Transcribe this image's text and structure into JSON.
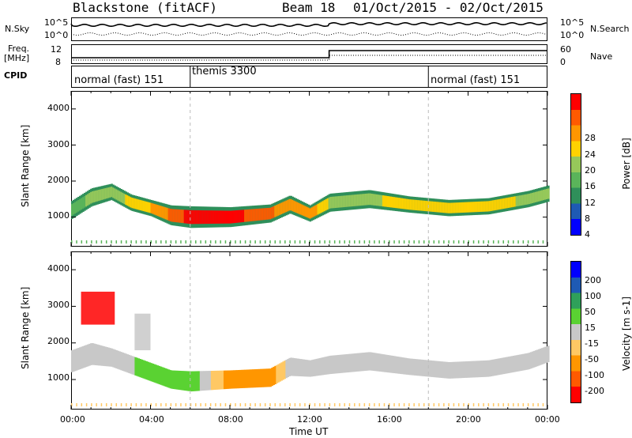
{
  "header": {
    "station": "Blackstone (fitACF)",
    "beam": "Beam 18",
    "dates": "01/Oct/2015 - 02/Oct/2015"
  },
  "top_panels": {
    "nsky_label": "N.Sky",
    "nsearch_label": "N.Search",
    "nsky_ticks": [
      "10^5",
      "10^0"
    ],
    "nsearch_ticks": [
      "10^5",
      "10^0"
    ],
    "freq_label": "Freq.",
    "freq_unit": "[MHz]",
    "freq_ticks": [
      "12",
      "8"
    ],
    "nave_label": "Nave",
    "nave_ticks": [
      "60",
      "0"
    ],
    "cpid_label": "CPID"
  },
  "cpid_segments": [
    {
      "label": "normal (fast) 151",
      "start_hour": 0,
      "end_hour": 6
    },
    {
      "label": "themis 3300",
      "start_hour": 6,
      "end_hour": 18
    },
    {
      "label": "normal (fast) 151",
      "start_hour": 18,
      "end_hour": 24
    }
  ],
  "x_axis": {
    "label": "Time UT",
    "ticks": [
      "00:00",
      "04:00",
      "08:00",
      "12:00",
      "16:00",
      "20:00",
      "00:00"
    ],
    "range_hours": [
      0,
      24
    ]
  },
  "colors": {
    "power": [
      "#0000ff",
      "#1e5ab4",
      "#2f8f5a",
      "#5ab45a",
      "#96c85a",
      "#ffd200",
      "#ff9600",
      "#ff5a00",
      "#ff0000"
    ],
    "velocity": [
      "#ff0000",
      "#ff5a00",
      "#ff9600",
      "#ffc864",
      "#c8c8c8",
      "#5ad232",
      "#2fa05a",
      "#1e5ab4",
      "#0000ff"
    ]
  },
  "chart_data": [
    {
      "type": "heatmap",
      "panel": "power",
      "ylabel": "Slant Range [km]",
      "xlabel": "Time UT",
      "ylim": [
        180,
        4500
      ],
      "yticks": [
        1000,
        2000,
        3000,
        4000
      ],
      "colorbar_label": "Power [dB]",
      "colorbar_ticks": [
        "28",
        "24",
        "20",
        "16",
        "12",
        "8",
        "4"
      ],
      "colorbar_range": [
        0,
        30
      ],
      "scatter_band": [
        {
          "hour": 0.0,
          "center_km": 1200,
          "width_km": 500,
          "power_db": 12
        },
        {
          "hour": 1.0,
          "center_km": 1550,
          "width_km": 500,
          "power_db": 14
        },
        {
          "hour": 2.0,
          "center_km": 1700,
          "width_km": 450,
          "power_db": 14
        },
        {
          "hour": 3.0,
          "center_km": 1400,
          "width_km": 450,
          "power_db": 18
        },
        {
          "hour": 4.0,
          "center_km": 1250,
          "width_km": 450,
          "power_db": 20
        },
        {
          "hour": 5.0,
          "center_km": 1050,
          "width_km": 550,
          "power_db": 24
        },
        {
          "hour": 6.0,
          "center_km": 1000,
          "width_km": 600,
          "power_db": 28
        },
        {
          "hour": 8.0,
          "center_km": 1000,
          "width_km": 550,
          "power_db": 28
        },
        {
          "hour": 10.0,
          "center_km": 1100,
          "width_km": 500,
          "power_db": 24
        },
        {
          "hour": 11.0,
          "center_km": 1350,
          "width_km": 500,
          "power_db": 20
        },
        {
          "hour": 12.0,
          "center_km": 1100,
          "width_km": 450,
          "power_db": 22
        },
        {
          "hour": 13.0,
          "center_km": 1400,
          "width_km": 500,
          "power_db": 16
        },
        {
          "hour": 15.0,
          "center_km": 1500,
          "width_km": 500,
          "power_db": 16
        },
        {
          "hour": 17.0,
          "center_km": 1350,
          "width_km": 450,
          "power_db": 18
        },
        {
          "hour": 19.0,
          "center_km": 1250,
          "width_km": 450,
          "power_db": 20
        },
        {
          "hour": 21.0,
          "center_km": 1300,
          "width_km": 450,
          "power_db": 18
        },
        {
          "hour": 23.0,
          "center_km": 1500,
          "width_km": 450,
          "power_db": 16
        },
        {
          "hour": 24.0,
          "center_km": 1650,
          "width_km": 450,
          "power_db": 14
        }
      ]
    },
    {
      "type": "heatmap",
      "panel": "velocity",
      "ylabel": "Slant Range [km]",
      "xlabel": "Time UT",
      "ylim": [
        180,
        4500
      ],
      "yticks": [
        1000,
        2000,
        3000,
        4000
      ],
      "colorbar_label": "Velocity [m s-1]",
      "colorbar_ticks": [
        "200",
        "100",
        "50",
        "15",
        "-15",
        "-50",
        "-100",
        "-200"
      ],
      "colorbar_range": [
        -250,
        250
      ],
      "scatter_band": [
        {
          "hour": 0.0,
          "center_km": 1500,
          "width_km": 600,
          "velocity": 0
        },
        {
          "hour": 1.0,
          "center_km": 1700,
          "width_km": 600,
          "velocity": 0
        },
        {
          "hour": 2.0,
          "center_km": 1600,
          "width_km": 500,
          "velocity": 0
        },
        {
          "hour": 3.0,
          "center_km": 1400,
          "width_km": 500,
          "velocity": 10
        },
        {
          "hour": 4.0,
          "center_km": 1200,
          "width_km": 500,
          "velocity": 40
        },
        {
          "hour": 5.0,
          "center_km": 1000,
          "width_km": 500,
          "velocity": 40
        },
        {
          "hour": 6.0,
          "center_km": 950,
          "width_km": 550,
          "velocity": 40
        },
        {
          "hour": 8.0,
          "center_km": 1000,
          "width_km": 500,
          "velocity": -70
        },
        {
          "hour": 10.0,
          "center_km": 1050,
          "width_km": 500,
          "velocity": -70
        },
        {
          "hour": 11.0,
          "center_km": 1350,
          "width_km": 500,
          "velocity": 0
        },
        {
          "hour": 12.0,
          "center_km": 1300,
          "width_km": 450,
          "velocity": 0
        },
        {
          "hour": 13.0,
          "center_km": 1400,
          "width_km": 500,
          "velocity": 0
        },
        {
          "hour": 15.0,
          "center_km": 1500,
          "width_km": 500,
          "velocity": 0
        },
        {
          "hour": 17.0,
          "center_km": 1350,
          "width_km": 450,
          "velocity": 0
        },
        {
          "hour": 19.0,
          "center_km": 1250,
          "width_km": 450,
          "velocity": 0
        },
        {
          "hour": 21.0,
          "center_km": 1300,
          "width_km": 450,
          "velocity": 0
        },
        {
          "hour": 23.0,
          "center_km": 1500,
          "width_km": 450,
          "velocity": 0
        },
        {
          "hour": 24.0,
          "center_km": 1700,
          "width_km": 450,
          "velocity": 0
        }
      ],
      "patches": [
        {
          "hour_start": 0.5,
          "hour_end": 2.2,
          "range_start_km": 2500,
          "range_end_km": 3400,
          "velocity": -200
        },
        {
          "hour_start": 3.2,
          "hour_end": 4.0,
          "range_start_km": 1800,
          "range_end_km": 2800,
          "velocity": 0
        }
      ]
    }
  ]
}
